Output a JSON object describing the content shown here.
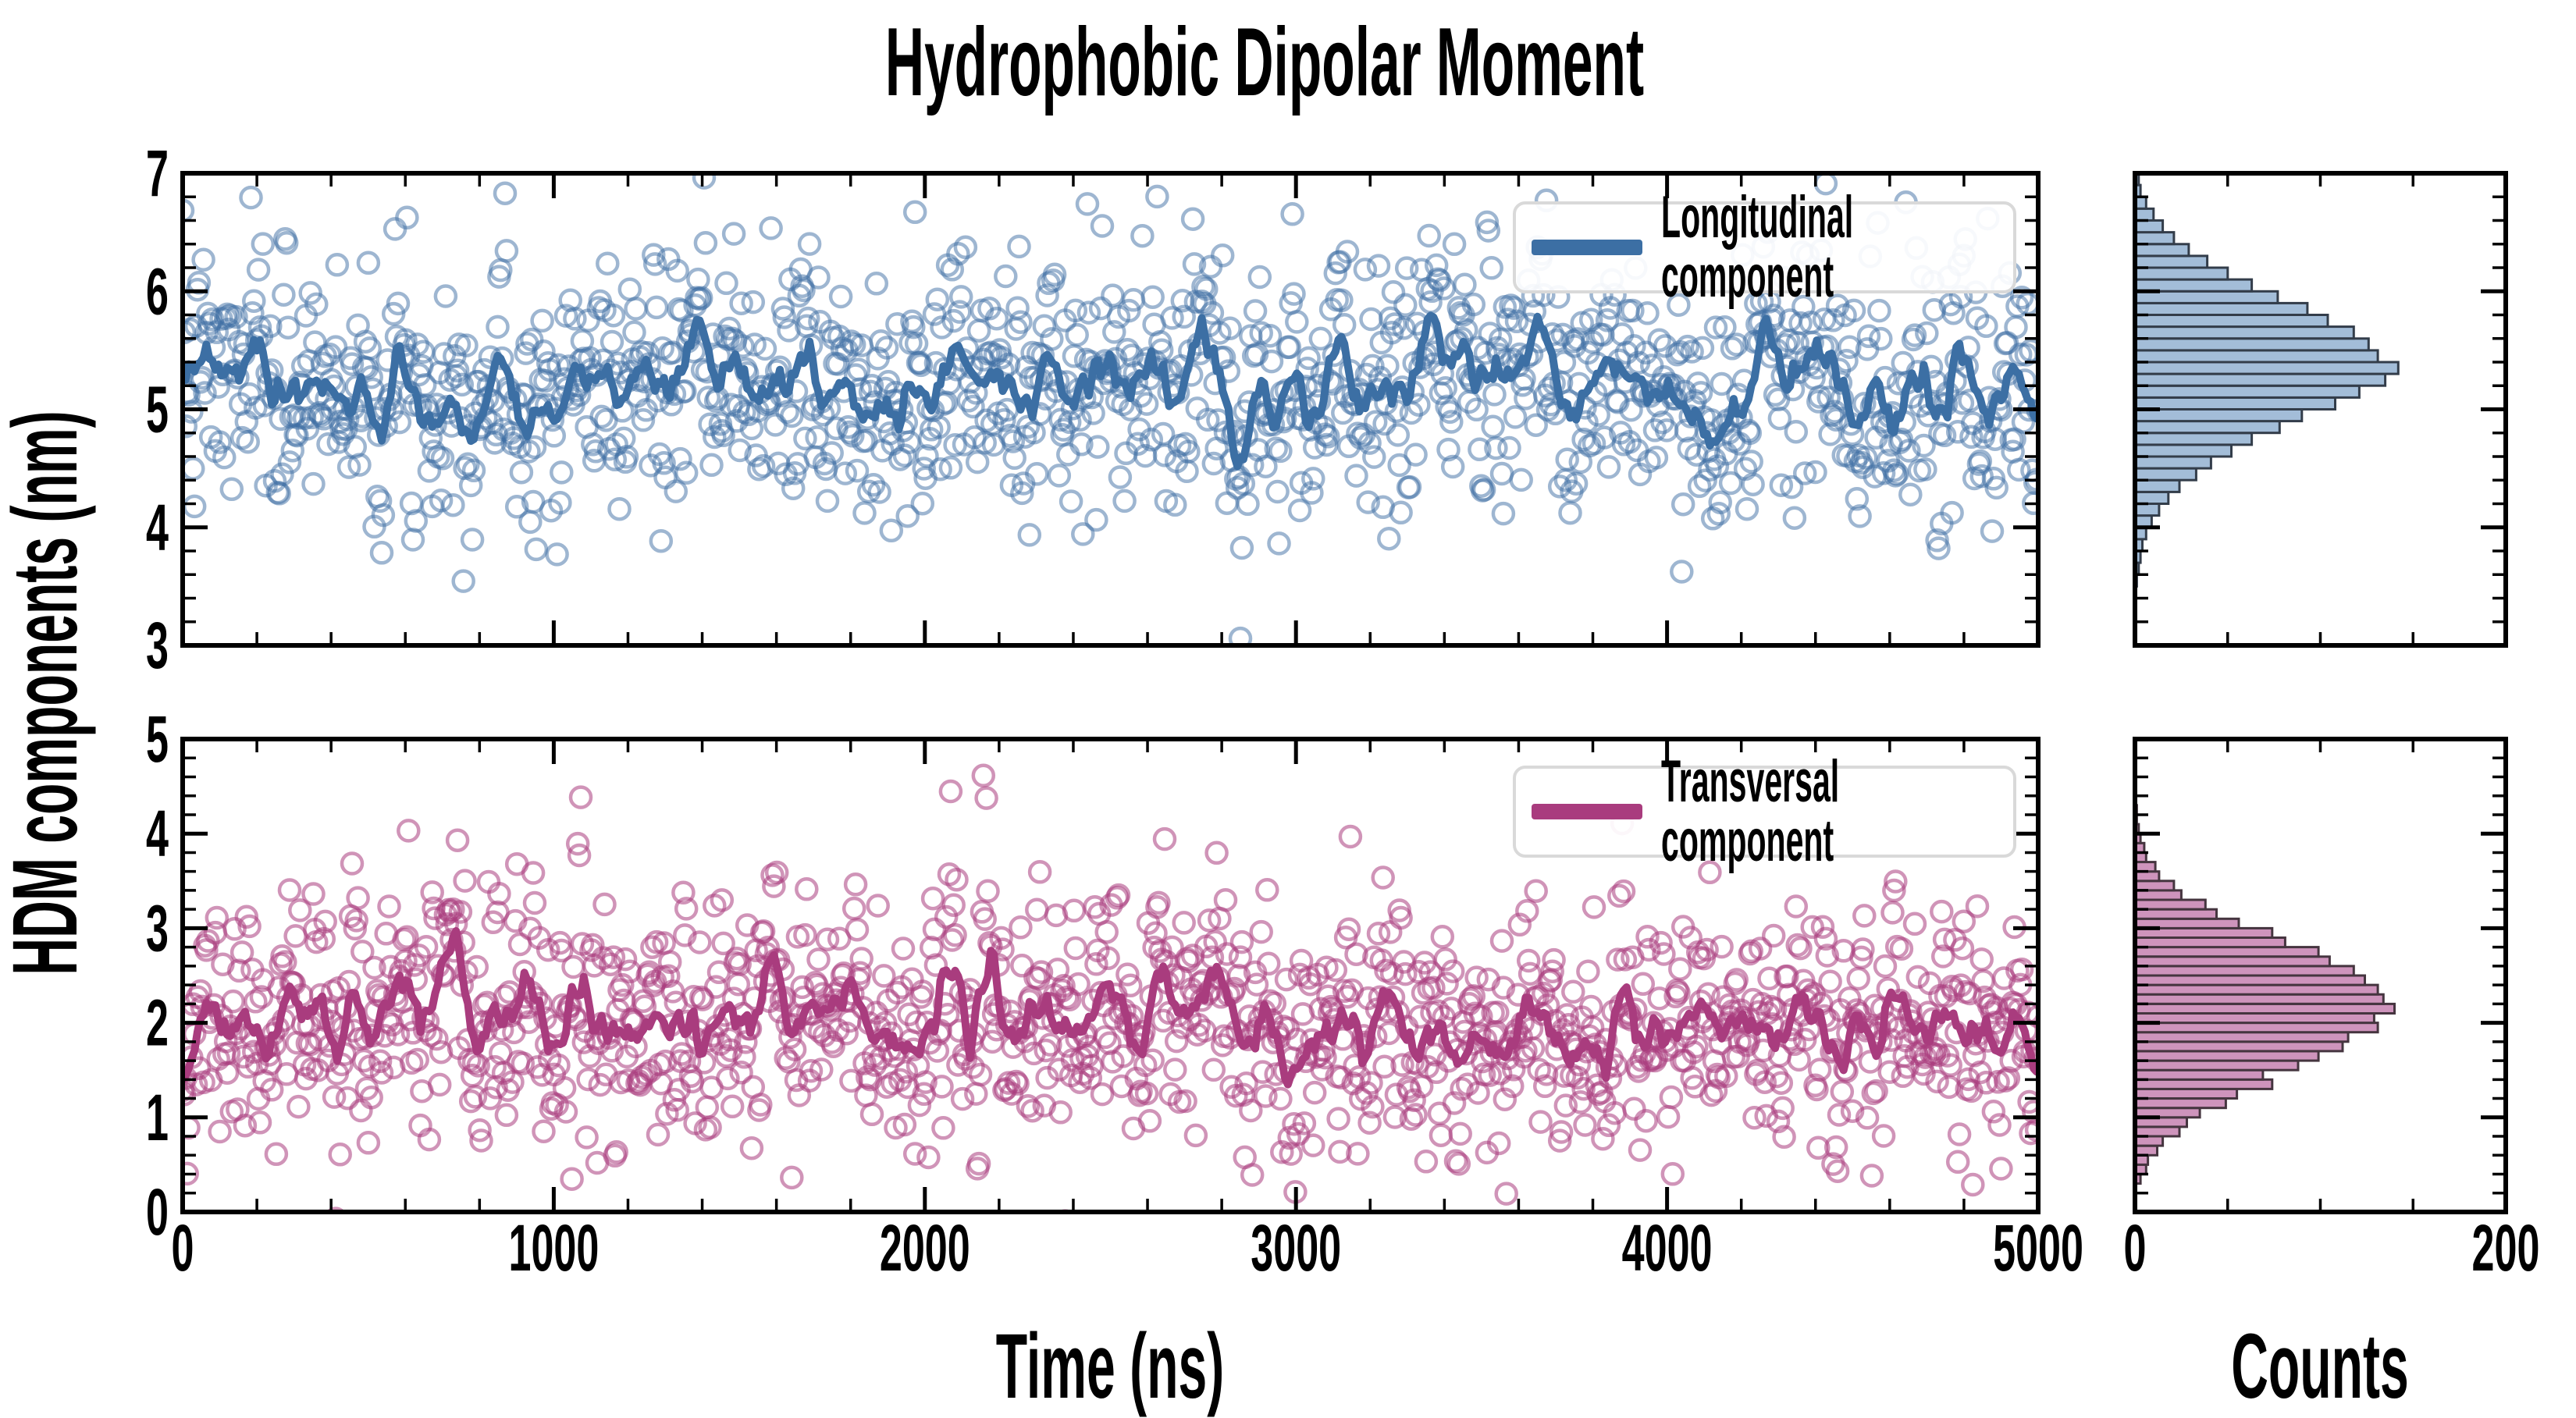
{
  "chart_data": {
    "type": "scatter+line+histogram",
    "title": "Hydrophobic Dipolar Moment",
    "xlabel": "Time (ns)",
    "ylabel": "HDM components (nm)",
    "counts_label": "Counts",
    "xlim": [
      0,
      5000
    ],
    "xticks": [
      0,
      1000,
      2000,
      3000,
      4000,
      5000
    ],
    "x_minor_step": 200,
    "counts_xlim": [
      0,
      200
    ],
    "counts_ticks": [
      0,
      200
    ],
    "counts_minor_step": 50,
    "legend_border_color": "#d9d9d9",
    "panels": [
      {
        "name": "longitudinal",
        "legend": "Longitudinal component",
        "ylim": [
          3,
          7
        ],
        "yticks": [
          7,
          6,
          5,
          4,
          3
        ],
        "y_minor_step": 0.2,
        "series_mean": 5.22,
        "series_std": 0.56,
        "n_points": 1250,
        "ar_coeff": 0.32,
        "ma_window": 15,
        "seed": 7,
        "line_color": "#3C6FA4",
        "marker_color": "rgba(61,109,163,0.5)",
        "hist_fill": "#A3BDD8",
        "hist_edge": "#333D4A",
        "hist": {
          "start": 3.5,
          "bin_width": 0.1,
          "counts": [
            1,
            2,
            3,
            4,
            6,
            9,
            13,
            18,
            24,
            33,
            41,
            52,
            63,
            78,
            90,
            108,
            121,
            135,
            142,
            131,
            126,
            118,
            104,
            93,
            77,
            63,
            50,
            39,
            29,
            21,
            15,
            10,
            6,
            3,
            2
          ]
        }
      },
      {
        "name": "transversal",
        "legend": "Transversal component",
        "ylim": [
          0,
          5
        ],
        "yticks": [
          5,
          4,
          3,
          2,
          1,
          0
        ],
        "y_minor_step": 0.2,
        "series_mean": 2.02,
        "series_std": 0.68,
        "n_points": 1250,
        "ar_coeff": 0.32,
        "ma_window": 15,
        "seed": 11,
        "line_color": "#A93C7E",
        "marker_color": "rgba(169,60,126,0.55)",
        "hist_fill": "#CE94BC",
        "hist_edge": "#45353F",
        "hist": {
          "start": 0.3,
          "bin_width": 0.1,
          "counts": [
            3,
            6,
            7,
            12,
            15,
            24,
            28,
            35,
            49,
            55,
            74,
            69,
            88,
            99,
            112,
            115,
            131,
            129,
            140,
            134,
            131,
            124,
            118,
            105,
            99,
            81,
            74,
            56,
            44,
            38,
            25,
            21,
            13,
            11,
            6,
            5,
            3,
            2,
            1,
            1
          ]
        }
      }
    ]
  }
}
